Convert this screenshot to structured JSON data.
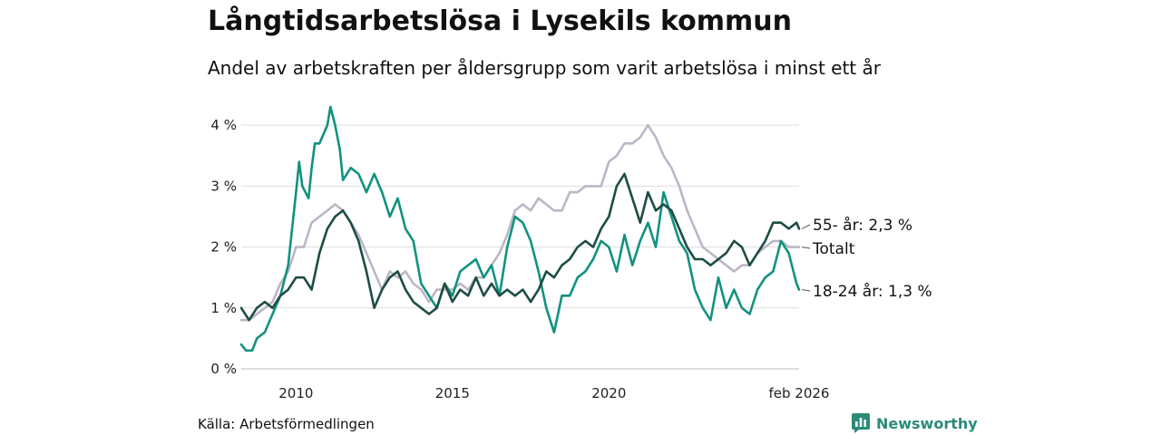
{
  "chart_data": {
    "type": "line",
    "title": "Långtidsarbetslösa i Lysekils kommun",
    "subtitle": "Andel av arbetskraften per åldersgrupp som varit arbetslösa i minst ett år",
    "source": "Källa: Arbetsförmedlingen",
    "brand": "Newsworthy",
    "xlabel": "",
    "ylabel": "",
    "x_range": [
      2008.25,
      2026.08
    ],
    "y_range": [
      0,
      4.3
    ],
    "y_ticks": [
      {
        "value": 0,
        "label": "0 %"
      },
      {
        "value": 1,
        "label": "1 %"
      },
      {
        "value": 2,
        "label": "2 %"
      },
      {
        "value": 3,
        "label": "3 %"
      },
      {
        "value": 4,
        "label": "4 %"
      }
    ],
    "x_ticks": [
      {
        "value": 2010,
        "label": "2010"
      },
      {
        "value": 2015,
        "label": "2015"
      },
      {
        "value": 2020,
        "label": "2020"
      },
      {
        "value": 2026.08,
        "label": "feb 2026"
      }
    ],
    "grid": "horizontal",
    "series": [
      {
        "name": "Totalt",
        "color": "#bdb6c6",
        "end_label": "Totalt",
        "points": [
          [
            2008.25,
            0.8
          ],
          [
            2008.5,
            0.8
          ],
          [
            2008.75,
            0.9
          ],
          [
            2009,
            1.0
          ],
          [
            2009.25,
            1.1
          ],
          [
            2009.5,
            1.4
          ],
          [
            2009.75,
            1.6
          ],
          [
            2010,
            2.0
          ],
          [
            2010.25,
            2.0
          ],
          [
            2010.5,
            2.4
          ],
          [
            2010.75,
            2.5
          ],
          [
            2011,
            2.6
          ],
          [
            2011.25,
            2.7
          ],
          [
            2011.5,
            2.6
          ],
          [
            2011.75,
            2.4
          ],
          [
            2012,
            2.2
          ],
          [
            2012.25,
            1.9
          ],
          [
            2012.5,
            1.6
          ],
          [
            2012.75,
            1.3
          ],
          [
            2013,
            1.6
          ],
          [
            2013.25,
            1.5
          ],
          [
            2013.5,
            1.6
          ],
          [
            2013.75,
            1.4
          ],
          [
            2014,
            1.3
          ],
          [
            2014.25,
            1.1
          ],
          [
            2014.5,
            1.3
          ],
          [
            2014.75,
            1.3
          ],
          [
            2015,
            1.3
          ],
          [
            2015.25,
            1.4
          ],
          [
            2015.5,
            1.3
          ],
          [
            2015.75,
            1.5
          ],
          [
            2016,
            1.5
          ],
          [
            2016.25,
            1.7
          ],
          [
            2016.5,
            1.9
          ],
          [
            2016.75,
            2.2
          ],
          [
            2017,
            2.6
          ],
          [
            2017.25,
            2.7
          ],
          [
            2017.5,
            2.6
          ],
          [
            2017.75,
            2.8
          ],
          [
            2018,
            2.7
          ],
          [
            2018.25,
            2.6
          ],
          [
            2018.5,
            2.6
          ],
          [
            2018.75,
            2.9
          ],
          [
            2019,
            2.9
          ],
          [
            2019.25,
            3.0
          ],
          [
            2019.5,
            3.0
          ],
          [
            2019.75,
            3.0
          ],
          [
            2020,
            3.4
          ],
          [
            2020.25,
            3.5
          ],
          [
            2020.5,
            3.7
          ],
          [
            2020.75,
            3.7
          ],
          [
            2021,
            3.8
          ],
          [
            2021.25,
            4.0
          ],
          [
            2021.5,
            3.8
          ],
          [
            2021.75,
            3.5
          ],
          [
            2022,
            3.3
          ],
          [
            2022.25,
            3.0
          ],
          [
            2022.5,
            2.6
          ],
          [
            2022.75,
            2.3
          ],
          [
            2023,
            2.0
          ],
          [
            2023.25,
            1.9
          ],
          [
            2023.5,
            1.8
          ],
          [
            2023.75,
            1.7
          ],
          [
            2024,
            1.6
          ],
          [
            2024.25,
            1.7
          ],
          [
            2024.5,
            1.7
          ],
          [
            2024.75,
            1.9
          ],
          [
            2025,
            2.0
          ],
          [
            2025.25,
            2.1
          ],
          [
            2025.5,
            2.1
          ],
          [
            2025.75,
            2.0
          ],
          [
            2026.08,
            2.0
          ]
        ]
      },
      {
        "name": "18-24 år",
        "color": "#12927f",
        "end_label": "18-24 år: 1,3 %",
        "points": [
          [
            2008.25,
            0.4
          ],
          [
            2008.4,
            0.3
          ],
          [
            2008.6,
            0.3
          ],
          [
            2008.75,
            0.5
          ],
          [
            2009,
            0.6
          ],
          [
            2009.25,
            0.9
          ],
          [
            2009.5,
            1.2
          ],
          [
            2009.75,
            1.7
          ],
          [
            2010,
            2.9
          ],
          [
            2010.1,
            3.4
          ],
          [
            2010.2,
            3.0
          ],
          [
            2010.4,
            2.8
          ],
          [
            2010.5,
            3.3
          ],
          [
            2010.6,
            3.7
          ],
          [
            2010.75,
            3.7
          ],
          [
            2011,
            4.0
          ],
          [
            2011.1,
            4.3
          ],
          [
            2011.25,
            4.0
          ],
          [
            2011.4,
            3.6
          ],
          [
            2011.5,
            3.1
          ],
          [
            2011.75,
            3.3
          ],
          [
            2012,
            3.2
          ],
          [
            2012.25,
            2.9
          ],
          [
            2012.5,
            3.2
          ],
          [
            2012.75,
            2.9
          ],
          [
            2013,
            2.5
          ],
          [
            2013.25,
            2.8
          ],
          [
            2013.5,
            2.3
          ],
          [
            2013.75,
            2.1
          ],
          [
            2014,
            1.4
          ],
          [
            2014.25,
            1.2
          ],
          [
            2014.5,
            1.0
          ],
          [
            2014.75,
            1.4
          ],
          [
            2015,
            1.2
          ],
          [
            2015.25,
            1.6
          ],
          [
            2015.5,
            1.7
          ],
          [
            2015.75,
            1.8
          ],
          [
            2016,
            1.5
          ],
          [
            2016.25,
            1.7
          ],
          [
            2016.5,
            1.2
          ],
          [
            2016.75,
            2.0
          ],
          [
            2017,
            2.5
          ],
          [
            2017.25,
            2.4
          ],
          [
            2017.5,
            2.1
          ],
          [
            2017.75,
            1.6
          ],
          [
            2018,
            1.0
          ],
          [
            2018.25,
            0.6
          ],
          [
            2018.5,
            1.2
          ],
          [
            2018.75,
            1.2
          ],
          [
            2019,
            1.5
          ],
          [
            2019.25,
            1.6
          ],
          [
            2019.5,
            1.8
          ],
          [
            2019.75,
            2.1
          ],
          [
            2020,
            2.0
          ],
          [
            2020.25,
            1.6
          ],
          [
            2020.5,
            2.2
          ],
          [
            2020.75,
            1.7
          ],
          [
            2021,
            2.1
          ],
          [
            2021.25,
            2.4
          ],
          [
            2021.5,
            2.0
          ],
          [
            2021.75,
            2.9
          ],
          [
            2022,
            2.5
          ],
          [
            2022.25,
            2.1
          ],
          [
            2022.5,
            1.9
          ],
          [
            2022.75,
            1.3
          ],
          [
            2023,
            1.0
          ],
          [
            2023.25,
            0.8
          ],
          [
            2023.5,
            1.5
          ],
          [
            2023.75,
            1.0
          ],
          [
            2024,
            1.3
          ],
          [
            2024.25,
            1.0
          ],
          [
            2024.5,
            0.9
          ],
          [
            2024.75,
            1.3
          ],
          [
            2025,
            1.5
          ],
          [
            2025.25,
            1.6
          ],
          [
            2025.5,
            2.1
          ],
          [
            2025.75,
            1.9
          ],
          [
            2026,
            1.4
          ],
          [
            2026.08,
            1.3
          ]
        ]
      },
      {
        "name": "55- år",
        "color": "#1e4d45",
        "end_label": "55- år: 2,3 %",
        "points": [
          [
            2008.25,
            1.0
          ],
          [
            2008.5,
            0.8
          ],
          [
            2008.75,
            1.0
          ],
          [
            2009,
            1.1
          ],
          [
            2009.25,
            1.0
          ],
          [
            2009.5,
            1.2
          ],
          [
            2009.75,
            1.3
          ],
          [
            2010,
            1.5
          ],
          [
            2010.25,
            1.5
          ],
          [
            2010.5,
            1.3
          ],
          [
            2010.75,
            1.9
          ],
          [
            2011,
            2.3
          ],
          [
            2011.25,
            2.5
          ],
          [
            2011.5,
            2.6
          ],
          [
            2011.75,
            2.4
          ],
          [
            2012,
            2.1
          ],
          [
            2012.25,
            1.6
          ],
          [
            2012.5,
            1.0
          ],
          [
            2012.75,
            1.3
          ],
          [
            2013,
            1.5
          ],
          [
            2013.25,
            1.6
          ],
          [
            2013.5,
            1.3
          ],
          [
            2013.75,
            1.1
          ],
          [
            2014,
            1.0
          ],
          [
            2014.25,
            0.9
          ],
          [
            2014.5,
            1.0
          ],
          [
            2014.75,
            1.4
          ],
          [
            2015,
            1.1
          ],
          [
            2015.25,
            1.3
          ],
          [
            2015.5,
            1.2
          ],
          [
            2015.75,
            1.5
          ],
          [
            2016,
            1.2
          ],
          [
            2016.25,
            1.4
          ],
          [
            2016.5,
            1.2
          ],
          [
            2016.75,
            1.3
          ],
          [
            2017,
            1.2
          ],
          [
            2017.25,
            1.3
          ],
          [
            2017.5,
            1.1
          ],
          [
            2017.75,
            1.3
          ],
          [
            2018,
            1.6
          ],
          [
            2018.25,
            1.5
          ],
          [
            2018.5,
            1.7
          ],
          [
            2018.75,
            1.8
          ],
          [
            2019,
            2.0
          ],
          [
            2019.25,
            2.1
          ],
          [
            2019.5,
            2.0
          ],
          [
            2019.75,
            2.3
          ],
          [
            2020,
            2.5
          ],
          [
            2020.25,
            3.0
          ],
          [
            2020.5,
            3.2
          ],
          [
            2020.75,
            2.8
          ],
          [
            2021,
            2.4
          ],
          [
            2021.25,
            2.9
          ],
          [
            2021.5,
            2.6
          ],
          [
            2021.75,
            2.7
          ],
          [
            2022,
            2.6
          ],
          [
            2022.25,
            2.3
          ],
          [
            2022.5,
            2.0
          ],
          [
            2022.75,
            1.8
          ],
          [
            2023,
            1.8
          ],
          [
            2023.25,
            1.7
          ],
          [
            2023.5,
            1.8
          ],
          [
            2023.75,
            1.9
          ],
          [
            2024,
            2.1
          ],
          [
            2024.25,
            2.0
          ],
          [
            2024.5,
            1.7
          ],
          [
            2024.75,
            1.9
          ],
          [
            2025,
            2.1
          ],
          [
            2025.25,
            2.4
          ],
          [
            2025.5,
            2.4
          ],
          [
            2025.75,
            2.3
          ],
          [
            2026,
            2.4
          ],
          [
            2026.08,
            2.3
          ]
        ]
      }
    ]
  }
}
